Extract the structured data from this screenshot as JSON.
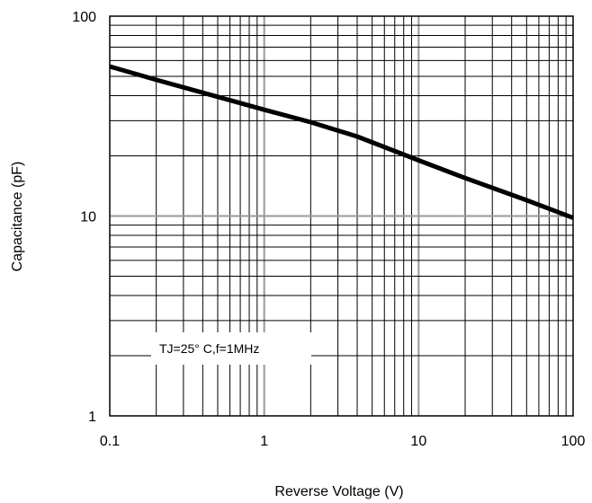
{
  "chart_data": {
    "type": "line",
    "xscale": "log",
    "yscale": "log",
    "xlim": [
      0.1,
      100
    ],
    "ylim": [
      1,
      100
    ],
    "xlabel": "Reverse Voltage (V)",
    "ylabel": "Capacitance (pF)",
    "x_ticks": [
      "0.1",
      "1",
      "10",
      "100"
    ],
    "y_ticks": [
      "1",
      "10",
      "100"
    ],
    "grid": true,
    "annotation": "TJ=25° C,f=1MHz",
    "series": [
      {
        "x": [
          0.1,
          0.2,
          0.5,
          1,
          2,
          4,
          10,
          20,
          50,
          100
        ],
        "y": [
          56,
          48,
          39.5,
          34,
          29.5,
          25,
          19,
          15.5,
          12,
          9.8
        ]
      }
    ],
    "colors": {
      "line": "#000000",
      "grid": "#000000",
      "grid_major": "#999999"
    }
  }
}
